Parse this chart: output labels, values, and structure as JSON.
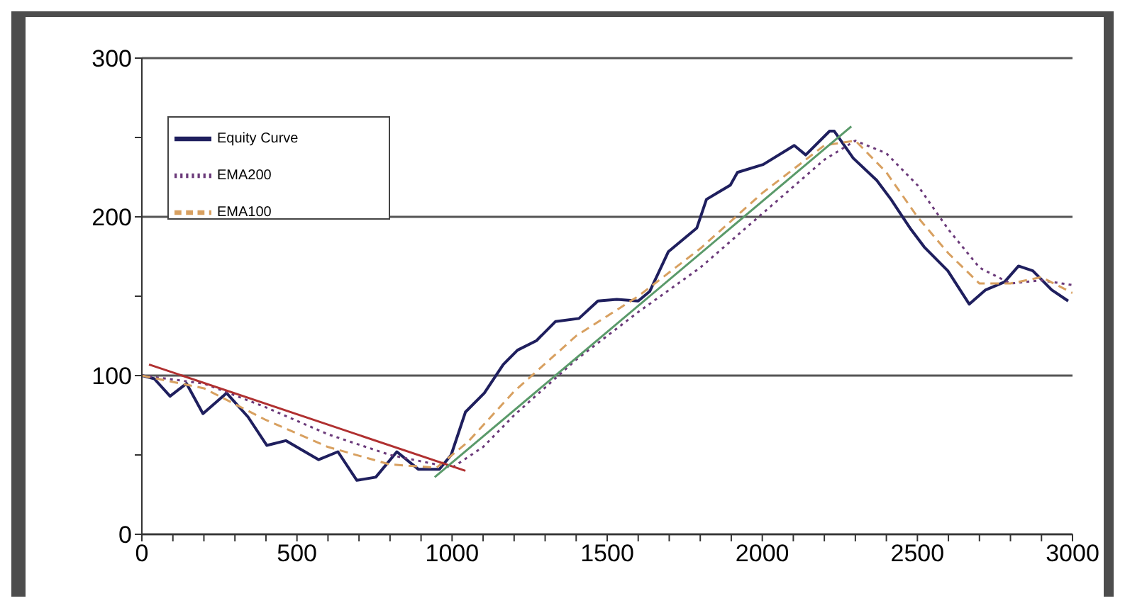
{
  "chart_data": {
    "type": "line",
    "xlim": [
      0,
      3000
    ],
    "ylim": [
      0,
      300
    ],
    "xticks": [
      0,
      {
        "value": 100,
        "label": null
      },
      {
        "value": 200,
        "label": null
      },
      {
        "value": 300,
        "label": null
      },
      {
        "value": 400,
        "label": null
      },
      500,
      {
        "value": 600,
        "label": null
      },
      {
        "value": 700,
        "label": null
      },
      {
        "value": 800,
        "label": null
      },
      {
        "value": 900,
        "label": null
      },
      1000,
      {
        "value": 1100,
        "label": null
      },
      {
        "value": 1200,
        "label": null
      },
      {
        "value": 1300,
        "label": null
      },
      {
        "value": 1400,
        "label": null
      },
      1500,
      {
        "value": 1600,
        "label": null
      },
      {
        "value": 1700,
        "label": null
      },
      {
        "value": 1800,
        "label": null
      },
      {
        "value": 1900,
        "label": null
      },
      2000,
      {
        "value": 2100,
        "label": null
      },
      {
        "value": 2200,
        "label": null
      },
      {
        "value": 2300,
        "label": null
      },
      {
        "value": 2400,
        "label": null
      },
      2500,
      {
        "value": 2600,
        "label": null
      },
      {
        "value": 2700,
        "label": null
      },
      {
        "value": 2800,
        "label": null
      },
      {
        "value": 2900,
        "label": null
      },
      3000
    ],
    "yticks": [
      0,
      {
        "value": 50,
        "label": null
      },
      100,
      {
        "value": 150,
        "label": null
      },
      200,
      {
        "value": 250,
        "label": null
      },
      300
    ],
    "grid": "y",
    "legend": "top left",
    "marker": "none",
    "series": [
      {
        "name": "Equity Curve",
        "color": "#1f1f5e",
        "line_style": "solid",
        "x": [
          0,
          40,
          91,
          144,
          197,
          273,
          342,
          403,
          464,
          570,
          632,
          693,
          754,
          822,
          891,
          959,
          997,
          1043,
          1104,
          1165,
          1211,
          1272,
          1333,
          1409,
          1470,
          1531,
          1600,
          1637,
          1697,
          1789,
          1820,
          1897,
          1920,
          2003,
          2103,
          2140,
          2217,
          2232,
          2293,
          2369,
          2415,
          2476,
          2522,
          2598,
          2667,
          2720,
          2781,
          2826,
          2872,
          2933,
          2986
        ],
        "values": [
          100,
          98,
          87,
          95,
          76,
          89,
          74,
          56,
          59,
          47,
          52,
          34,
          36,
          52,
          41,
          41,
          50,
          77,
          89,
          107,
          116,
          122,
          134,
          136,
          147,
          148,
          147,
          153,
          178,
          193,
          211,
          220,
          228,
          233,
          245,
          239,
          254,
          254,
          237,
          223,
          211,
          193,
          181,
          166,
          145,
          154,
          159,
          169,
          166,
          154,
          147
        ]
      },
      {
        "name": "EMA200",
        "color": "#6b3a7a",
        "line_style": "dotted",
        "x": [
          0,
          200,
          400,
          600,
          800,
          1000,
          1100,
          1200,
          1400,
          1600,
          1800,
          2000,
          2200,
          2300,
          2400,
          2500,
          2600,
          2700,
          2800,
          2900,
          3000
        ],
        "values": [
          100,
          95,
          80,
          63,
          50,
          42,
          55,
          75,
          110,
          140,
          168,
          202,
          236,
          248,
          240,
          220,
          192,
          168,
          158,
          160,
          157
        ]
      },
      {
        "name": "EMA100",
        "color": "#d8a060",
        "line_style": "dashed",
        "x": [
          0,
          200,
          400,
          600,
          800,
          950,
          1050,
          1200,
          1400,
          1600,
          1800,
          2000,
          2200,
          2300,
          2400,
          2500,
          2600,
          2700,
          2800,
          2900,
          3000
        ],
        "values": [
          100,
          92,
          72,
          55,
          44,
          42,
          58,
          90,
          125,
          150,
          180,
          215,
          245,
          248,
          228,
          200,
          177,
          158,
          158,
          162,
          152
        ]
      },
      {
        "color": "#b03030",
        "line_style": "solid",
        "x": [
          23,
          1043
        ],
        "values": [
          107,
          40
        ]
      },
      {
        "color": "#5a9a6a",
        "line_style": "solid",
        "x": [
          944,
          2287
        ],
        "values": [
          36,
          257
        ]
      }
    ]
  }
}
